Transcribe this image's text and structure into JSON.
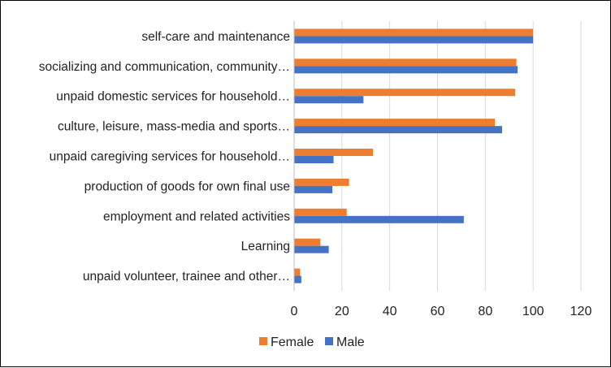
{
  "chart_data": {
    "type": "bar",
    "orientation": "horizontal",
    "title": "",
    "xlabel": "",
    "ylabel": "",
    "xlim": [
      0,
      120
    ],
    "xticks": [
      0,
      20,
      40,
      60,
      80,
      100,
      120
    ],
    "grid": true,
    "legend_position": "bottom",
    "categories": [
      "self-care and maintenance",
      "socializing and communication, community…",
      "unpaid domestic services for household…",
      "culture, leisure, mass-media and sports…",
      "unpaid caregiving services for household…",
      "production of goods for own final use",
      "employment and related activities",
      "Learning",
      "unpaid volunteer, trainee and other…"
    ],
    "series": [
      {
        "name": "Female",
        "color": "#ED7D31",
        "values": [
          100,
          93,
          92.5,
          84,
          33,
          23,
          22,
          11,
          2.5
        ]
      },
      {
        "name": "Male",
        "color": "#4472C4",
        "values": [
          100,
          93.5,
          29,
          87,
          16.5,
          16,
          71,
          14.5,
          3
        ]
      }
    ]
  }
}
